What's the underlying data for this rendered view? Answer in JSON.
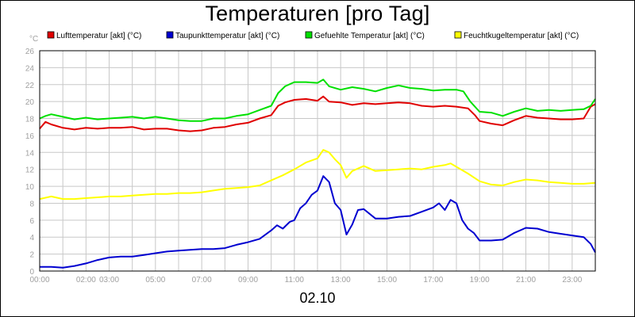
{
  "chart_data": {
    "type": "line",
    "title": "Temperaturen [pro Tag]",
    "ylabel": "°C",
    "xlabel": "02.10",
    "ylim": [
      0,
      26
    ],
    "xlim": [
      0,
      24
    ],
    "grid": true,
    "legend_placement": "top",
    "y_ticks": [
      "0",
      "2",
      "4",
      "6",
      "8",
      "10",
      "12",
      "14",
      "16",
      "18",
      "20",
      "22",
      "24",
      "26"
    ],
    "x_tick_labels": [
      {
        "x": 0,
        "label": "00:00"
      },
      {
        "x": 2,
        "label": "02:00"
      },
      {
        "x": 3,
        "label": "03:00"
      },
      {
        "x": 5,
        "label": "05:00"
      },
      {
        "x": 7,
        "label": "07:00"
      },
      {
        "x": 9,
        "label": "09:00"
      },
      {
        "x": 11,
        "label": "11:00"
      },
      {
        "x": 13,
        "label": "13:00"
      },
      {
        "x": 15,
        "label": "15:00"
      },
      {
        "x": 17,
        "label": "17:00"
      },
      {
        "x": 19,
        "label": "19:00"
      },
      {
        "x": 21,
        "label": "21:00"
      },
      {
        "x": 23,
        "label": "23:00"
      }
    ],
    "series": [
      {
        "name": "Lufttemperatur [akt] (°C)",
        "color": "#e00000",
        "points": [
          [
            0,
            16.8
          ],
          [
            0.25,
            17.6
          ],
          [
            0.5,
            17.3
          ],
          [
            1,
            16.9
          ],
          [
            1.5,
            16.7
          ],
          [
            2,
            16.9
          ],
          [
            2.5,
            16.8
          ],
          [
            3,
            16.9
          ],
          [
            3.5,
            16.9
          ],
          [
            4,
            17.0
          ],
          [
            4.5,
            16.7
          ],
          [
            5,
            16.8
          ],
          [
            5.5,
            16.8
          ],
          [
            6,
            16.6
          ],
          [
            6.5,
            16.5
          ],
          [
            7,
            16.6
          ],
          [
            7.5,
            16.9
          ],
          [
            8,
            17.0
          ],
          [
            8.5,
            17.3
          ],
          [
            9,
            17.5
          ],
          [
            9.5,
            18.0
          ],
          [
            10,
            18.4
          ],
          [
            10.3,
            19.5
          ],
          [
            10.6,
            19.9
          ],
          [
            11,
            20.2
          ],
          [
            11.5,
            20.3
          ],
          [
            12,
            20.1
          ],
          [
            12.25,
            20.6
          ],
          [
            12.5,
            20.0
          ],
          [
            13,
            19.9
          ],
          [
            13.5,
            19.6
          ],
          [
            14,
            19.8
          ],
          [
            14.5,
            19.7
          ],
          [
            15,
            19.8
          ],
          [
            15.5,
            19.9
          ],
          [
            16,
            19.8
          ],
          [
            16.5,
            19.5
          ],
          [
            17,
            19.4
          ],
          [
            17.5,
            19.5
          ],
          [
            18,
            19.4
          ],
          [
            18.5,
            19.2
          ],
          [
            18.8,
            18.4
          ],
          [
            19,
            17.7
          ],
          [
            19.5,
            17.4
          ],
          [
            20,
            17.2
          ],
          [
            20.5,
            17.8
          ],
          [
            21,
            18.3
          ],
          [
            21.5,
            18.1
          ],
          [
            22,
            18.0
          ],
          [
            22.5,
            17.9
          ],
          [
            23,
            17.9
          ],
          [
            23.5,
            18.0
          ],
          [
            23.8,
            19.4
          ],
          [
            24,
            19.7
          ]
        ]
      },
      {
        "name": "Taupunkttemperatur [akt] (°C)",
        "color": "#0000d0",
        "points": [
          [
            0,
            0.5
          ],
          [
            0.5,
            0.5
          ],
          [
            1,
            0.4
          ],
          [
            1.5,
            0.6
          ],
          [
            2,
            0.9
          ],
          [
            2.5,
            1.3
          ],
          [
            3,
            1.6
          ],
          [
            3.5,
            1.7
          ],
          [
            4,
            1.7
          ],
          [
            4.5,
            1.9
          ],
          [
            5,
            2.1
          ],
          [
            5.5,
            2.3
          ],
          [
            6,
            2.4
          ],
          [
            6.5,
            2.5
          ],
          [
            7,
            2.6
          ],
          [
            7.5,
            2.6
          ],
          [
            8,
            2.7
          ],
          [
            8.5,
            3.1
          ],
          [
            9,
            3.4
          ],
          [
            9.5,
            3.8
          ],
          [
            10,
            4.8
          ],
          [
            10.25,
            5.4
          ],
          [
            10.5,
            5.0
          ],
          [
            10.8,
            5.8
          ],
          [
            11,
            6.0
          ],
          [
            11.25,
            7.4
          ],
          [
            11.5,
            8.0
          ],
          [
            11.75,
            9.0
          ],
          [
            12,
            9.5
          ],
          [
            12.25,
            11.2
          ],
          [
            12.5,
            10.5
          ],
          [
            12.75,
            8.0
          ],
          [
            13,
            7.2
          ],
          [
            13.25,
            4.3
          ],
          [
            13.5,
            5.5
          ],
          [
            13.75,
            7.2
          ],
          [
            14,
            7.3
          ],
          [
            14.5,
            6.2
          ],
          [
            15,
            6.2
          ],
          [
            15.5,
            6.4
          ],
          [
            16,
            6.5
          ],
          [
            16.5,
            7.0
          ],
          [
            17,
            7.5
          ],
          [
            17.25,
            8.0
          ],
          [
            17.5,
            7.2
          ],
          [
            17.75,
            8.4
          ],
          [
            18,
            8.0
          ],
          [
            18.25,
            6.0
          ],
          [
            18.5,
            5.0
          ],
          [
            18.75,
            4.5
          ],
          [
            19,
            3.6
          ],
          [
            19.5,
            3.6
          ],
          [
            20,
            3.7
          ],
          [
            20.5,
            4.5
          ],
          [
            21,
            5.1
          ],
          [
            21.5,
            5.0
          ],
          [
            22,
            4.6
          ],
          [
            22.5,
            4.4
          ],
          [
            23,
            4.2
          ],
          [
            23.5,
            4.0
          ],
          [
            23.8,
            3.2
          ],
          [
            24,
            2.2
          ]
        ]
      },
      {
        "name": "Gefuehlte Temperatur [akt] (°C)",
        "color": "#00e000",
        "points": [
          [
            0,
            18.0
          ],
          [
            0.25,
            18.3
          ],
          [
            0.5,
            18.5
          ],
          [
            1,
            18.2
          ],
          [
            1.5,
            17.9
          ],
          [
            2,
            18.1
          ],
          [
            2.5,
            17.9
          ],
          [
            3,
            18.0
          ],
          [
            3.5,
            18.1
          ],
          [
            4,
            18.2
          ],
          [
            4.5,
            18.0
          ],
          [
            5,
            18.2
          ],
          [
            5.5,
            18.0
          ],
          [
            6,
            17.8
          ],
          [
            6.5,
            17.7
          ],
          [
            7,
            17.7
          ],
          [
            7.5,
            18.0
          ],
          [
            8,
            18.0
          ],
          [
            8.5,
            18.3
          ],
          [
            9,
            18.5
          ],
          [
            9.5,
            19.0
          ],
          [
            10,
            19.5
          ],
          [
            10.3,
            21.0
          ],
          [
            10.6,
            21.8
          ],
          [
            11,
            22.3
          ],
          [
            11.5,
            22.3
          ],
          [
            12,
            22.2
          ],
          [
            12.25,
            22.6
          ],
          [
            12.5,
            21.8
          ],
          [
            13,
            21.4
          ],
          [
            13.5,
            21.7
          ],
          [
            14,
            21.5
          ],
          [
            14.5,
            21.2
          ],
          [
            15,
            21.6
          ],
          [
            15.5,
            21.9
          ],
          [
            16,
            21.6
          ],
          [
            16.5,
            21.5
          ],
          [
            17,
            21.3
          ],
          [
            17.5,
            21.4
          ],
          [
            18,
            21.4
          ],
          [
            18.3,
            21.2
          ],
          [
            18.6,
            20.0
          ],
          [
            19,
            18.8
          ],
          [
            19.5,
            18.7
          ],
          [
            20,
            18.3
          ],
          [
            20.5,
            18.8
          ],
          [
            21,
            19.2
          ],
          [
            21.5,
            18.9
          ],
          [
            22,
            19.0
          ],
          [
            22.5,
            18.9
          ],
          [
            23,
            19.0
          ],
          [
            23.5,
            19.1
          ],
          [
            23.8,
            19.5
          ],
          [
            24,
            20.3
          ]
        ]
      },
      {
        "name": "Feuchtkugeltemperatur [akt] (°C)",
        "color": "#ffff00",
        "points": [
          [
            0,
            8.5
          ],
          [
            0.5,
            8.8
          ],
          [
            1,
            8.5
          ],
          [
            1.5,
            8.5
          ],
          [
            2,
            8.6
          ],
          [
            2.5,
            8.7
          ],
          [
            3,
            8.8
          ],
          [
            3.5,
            8.8
          ],
          [
            4,
            8.9
          ],
          [
            4.5,
            9.0
          ],
          [
            5,
            9.1
          ],
          [
            5.5,
            9.1
          ],
          [
            6,
            9.2
          ],
          [
            6.5,
            9.2
          ],
          [
            7,
            9.3
          ],
          [
            7.5,
            9.5
          ],
          [
            8,
            9.7
          ],
          [
            8.5,
            9.8
          ],
          [
            9,
            9.9
          ],
          [
            9.5,
            10.1
          ],
          [
            10,
            10.7
          ],
          [
            10.5,
            11.3
          ],
          [
            11,
            12.0
          ],
          [
            11.5,
            12.8
          ],
          [
            12,
            13.3
          ],
          [
            12.25,
            14.3
          ],
          [
            12.5,
            14.0
          ],
          [
            12.75,
            13.2
          ],
          [
            13,
            12.5
          ],
          [
            13.25,
            11.0
          ],
          [
            13.5,
            11.8
          ],
          [
            14,
            12.4
          ],
          [
            14.5,
            11.8
          ],
          [
            15,
            11.9
          ],
          [
            15.5,
            12.0
          ],
          [
            16,
            12.1
          ],
          [
            16.5,
            12.0
          ],
          [
            17,
            12.3
          ],
          [
            17.5,
            12.5
          ],
          [
            17.75,
            12.7
          ],
          [
            18,
            12.3
          ],
          [
            18.5,
            11.5
          ],
          [
            19,
            10.6
          ],
          [
            19.5,
            10.2
          ],
          [
            20,
            10.1
          ],
          [
            20.5,
            10.5
          ],
          [
            21,
            10.8
          ],
          [
            21.5,
            10.7
          ],
          [
            22,
            10.5
          ],
          [
            22.5,
            10.4
          ],
          [
            23,
            10.3
          ],
          [
            23.5,
            10.3
          ],
          [
            24,
            10.4
          ]
        ]
      }
    ]
  }
}
